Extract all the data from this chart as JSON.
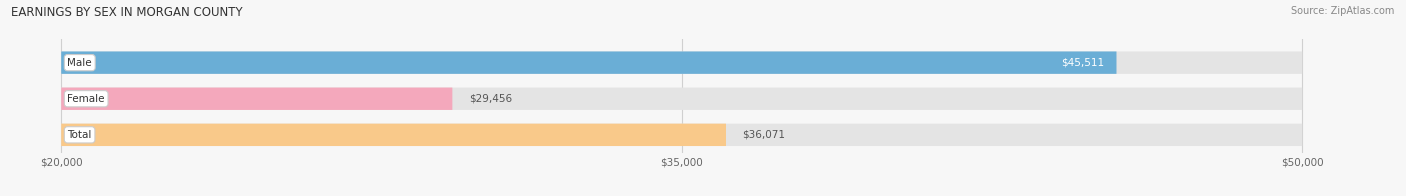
{
  "title": "EARNINGS BY SEX IN MORGAN COUNTY",
  "source": "Source: ZipAtlas.com",
  "categories": [
    "Male",
    "Female",
    "Total"
  ],
  "values": [
    45511,
    29456,
    36071
  ],
  "bar_colors": [
    "#6aaed6",
    "#f4a8bc",
    "#f9c98a"
  ],
  "bar_bg_color": "#e4e4e4",
  "xmin": 20000,
  "xmax": 50000,
  "xticks": [
    20000,
    35000,
    50000
  ],
  "xtick_labels": [
    "$20,000",
    "$35,000",
    "$50,000"
  ],
  "value_labels": [
    "$45,511",
    "$29,456",
    "$36,071"
  ],
  "value_label_colors": [
    "white",
    "#555555",
    "#555555"
  ],
  "value_label_inside": [
    true,
    false,
    false
  ],
  "figsize": [
    14.06,
    1.96
  ],
  "dpi": 100,
  "background_color": "#f7f7f7",
  "title_fontsize": 8.5,
  "bar_label_fontsize": 7.5,
  "value_fontsize": 7.5,
  "source_fontsize": 7.0
}
